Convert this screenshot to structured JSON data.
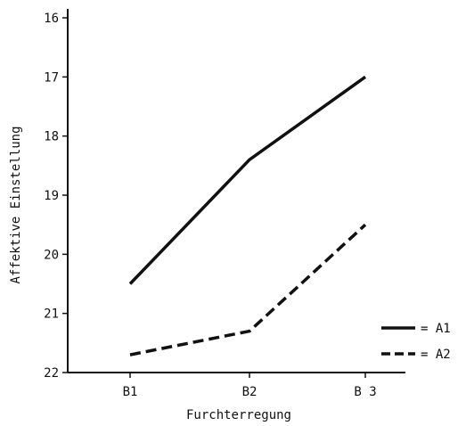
{
  "chart_data": {
    "type": "line",
    "title": "",
    "xlabel": "Furchterregung",
    "ylabel": "Affektive Einstellung",
    "categories": [
      "B1",
      "B2",
      "B 3"
    ],
    "y_ticks": [
      "16",
      "17",
      "18",
      "19",
      "20",
      "21",
      "22"
    ],
    "y_tick_values": [
      16,
      17,
      18,
      19,
      20,
      21,
      22
    ],
    "ylim": [
      16,
      22
    ],
    "y_inverted": true,
    "grid": false,
    "legend_position": "bottom-right",
    "series": [
      {
        "name": "A1",
        "legend_label": "= A1",
        "values": [
          20.5,
          18.4,
          17.0
        ],
        "line_style": "solid",
        "color": "#111111"
      },
      {
        "name": "A2",
        "legend_label": "= A2",
        "values": [
          21.7,
          21.3,
          19.5
        ],
        "line_style": "dashed",
        "color": "#111111"
      }
    ]
  }
}
